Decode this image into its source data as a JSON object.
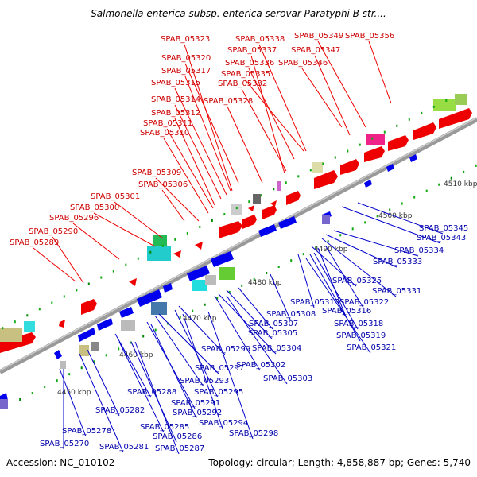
{
  "title": "Salmonella enterica subsp. enterica serovar Paratyphi B str....",
  "footer": {
    "accession": "Accession: NC_010102",
    "summary": "Topology: circular; Length: 4,858,887 bp; Genes: 5,740"
  },
  "colors": {
    "forward": "#ff0000",
    "reverse": "#0000ee",
    "backbone": "#888888",
    "tick": "#008800"
  },
  "kbp_labels": [
    "4450 kbp",
    "4460 kbp",
    "4470 kbp",
    "4480 kbp",
    "4490 kbp",
    "4500 kbp",
    "4510 kbp"
  ],
  "forward_labels": [
    "SPAB_05323",
    "SPAB_05338",
    "SPAB_05349",
    "SPAB_05356",
    "SPAB_05337",
    "SPAB_05347",
    "SPAB_05320",
    "SPAB_05336",
    "SPAB_05346",
    "SPAB_05317",
    "SPAB_05335",
    "SPAB_05315",
    "SPAB_05332",
    "SPAB_05314",
    "SPAB_05328",
    "SPAB_05312",
    "SPAB_05311",
    "SPAB_05310",
    "SPAB_05309",
    "SPAB_05306",
    "SPAB_05301",
    "SPAB_05300",
    "SPAB_05296",
    "SPAB_05290",
    "SPAB_05289"
  ],
  "reverse_labels": [
    "SPAB_05345",
    "SPAB_05343",
    "SPAB_05334",
    "SPAB_05333",
    "SPAB_05331",
    "SPAB_05325",
    "SPAB_05313",
    "SPAB_05322",
    "SPAB_05308",
    "SPAB_05316",
    "SPAB_05307",
    "SPAB_05318",
    "SPAB_05305",
    "SPAB_05319",
    "SPAB_05321",
    "SPAB_05304",
    "SPAB_05299",
    "SPAB_05302",
    "SPAB_05297",
    "SPAB_05303",
    "SPAB_05293",
    "SPAB_05295",
    "SPAB_05288",
    "SPAB_05291",
    "SPAB_05282",
    "SPAB_05292",
    "SPAB_05294",
    "SPAB_05285",
    "SPAB_05298",
    "SPAB_05286",
    "SPAB_05278",
    "SPAB_05270",
    "SPAB_05281",
    "SPAB_05287"
  ]
}
